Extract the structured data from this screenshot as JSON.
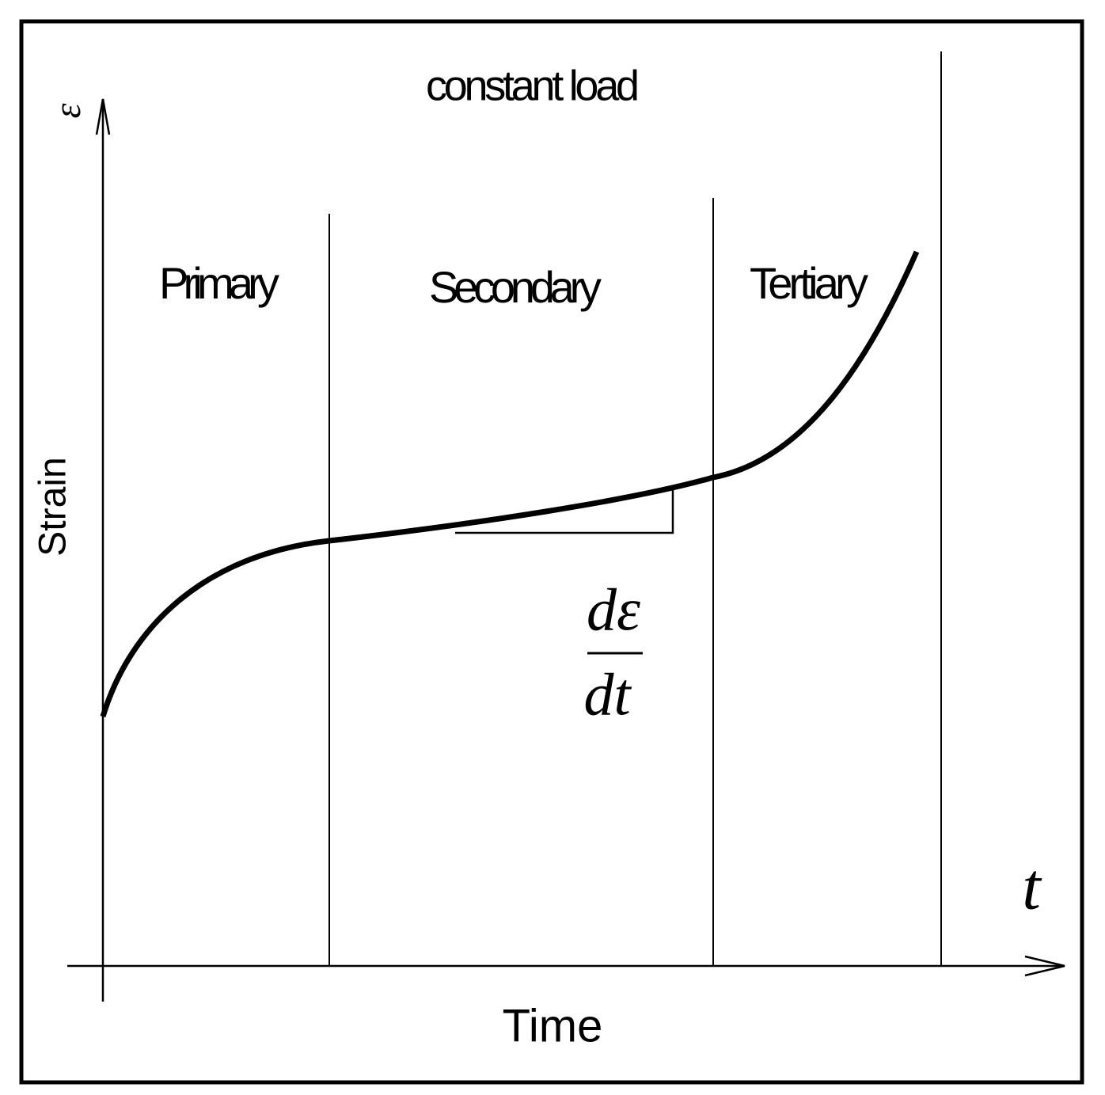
{
  "header": {
    "title": "constant load"
  },
  "axes": {
    "y_symbol": "ε",
    "y_label": "Strain",
    "x_symbol": "t",
    "x_label": "Time"
  },
  "stages": [
    "Primary",
    "Secondary",
    "Tertiary"
  ],
  "slope": {
    "numerator": "dε",
    "denominator": "dt"
  }
}
